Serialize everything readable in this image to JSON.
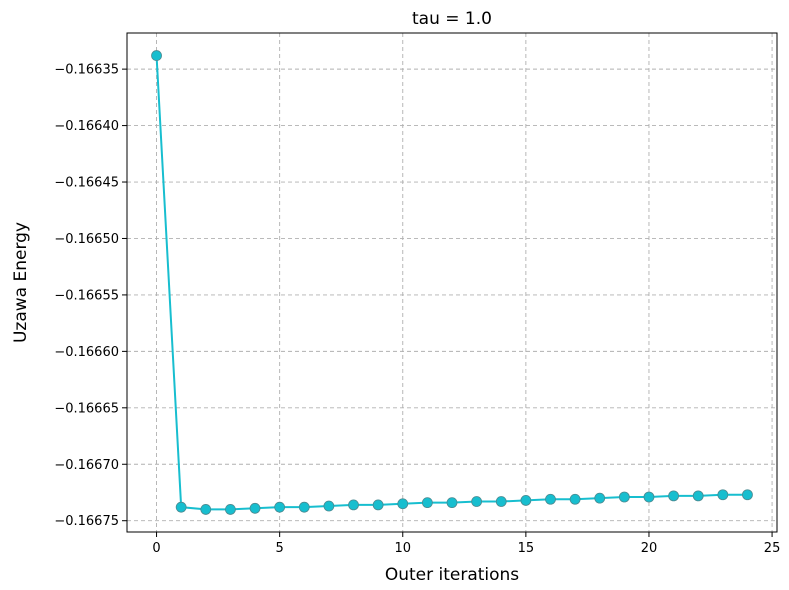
{
  "chart_data": {
    "type": "line",
    "title": "tau = 1.0",
    "xlabel": "Outer iterations",
    "ylabel": "Uzawa Energy",
    "xlim": [
      -1.2,
      25.2
    ],
    "ylim": [
      -0.16676,
      -0.166318
    ],
    "x_ticks": [
      0,
      5,
      10,
      15,
      20,
      25
    ],
    "x_tick_labels": [
      "0",
      "5",
      "10",
      "15",
      "20",
      "25"
    ],
    "y_ticks": [
      -0.16635,
      -0.1664,
      -0.16645,
      -0.1665,
      -0.16655,
      -0.1666,
      -0.16665,
      -0.1667,
      -0.16675
    ],
    "y_tick_labels": [
      "−0.16635",
      "−0.16640",
      "−0.16645",
      "−0.16650",
      "−0.16655",
      "−0.16660",
      "−0.16665",
      "−0.16670",
      "−0.16675"
    ],
    "grid": true,
    "legend": "none",
    "color": "#17becf",
    "marker": "circle",
    "series": [
      {
        "x": [
          0,
          1,
          2,
          3,
          4,
          5,
          6,
          7,
          8,
          9,
          10,
          11,
          12,
          13,
          14,
          15,
          16,
          17,
          18,
          19,
          20,
          21,
          22,
          23,
          24
        ],
        "values": [
          -0.166338,
          -0.166738,
          -0.16674,
          -0.16674,
          -0.166739,
          -0.166738,
          -0.166738,
          -0.166737,
          -0.166736,
          -0.166736,
          -0.166735,
          -0.166734,
          -0.166734,
          -0.166733,
          -0.166733,
          -0.166732,
          -0.166731,
          -0.166731,
          -0.16673,
          -0.166729,
          -0.166729,
          -0.166728,
          -0.166728,
          -0.166727,
          -0.166727
        ]
      }
    ]
  }
}
